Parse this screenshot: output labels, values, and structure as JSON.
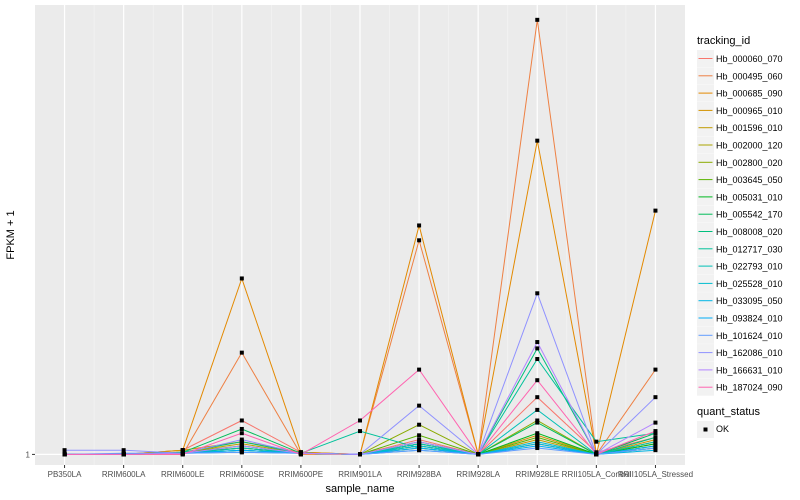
{
  "chart_data": {
    "type": "line",
    "xlabel": "sample_name",
    "ylabel": "FPKM + 1",
    "categories": [
      "PB350LA",
      "RRIM600LA",
      "RRIM600LE",
      "RRIM600SE",
      "RRIM600PE",
      "RRIM901LA",
      "RRIM928BA",
      "RRIM928LA",
      "RRIM928LE",
      "RRII105LA_Control",
      "RRII105LA_Stressed"
    ],
    "y_ticks": [
      {
        "value": 1,
        "label": "1"
      }
    ],
    "ylim": [
      0.5,
      22.2
    ],
    "grid": true,
    "legend": {
      "title": "tracking_id",
      "position": "right",
      "marker_title": "quant_status",
      "marker_label": "OK"
    },
    "series": [
      {
        "name": "Hb_000060_070",
        "color": "#F8766D",
        "values": [
          1,
          1,
          1.2,
          2.6,
          1.1,
          1,
          1.7,
          1,
          3.7,
          1.1,
          1.8
        ]
      },
      {
        "name": "Hb_000495_060",
        "color": "#EE8043",
        "values": [
          1,
          1,
          1,
          5.8,
          1,
          1,
          11.1,
          1,
          21.5,
          1,
          5.0
        ]
      },
      {
        "name": "Hb_000685_090",
        "color": "#E38900",
        "values": [
          1,
          1,
          1.2,
          9.3,
          1.1,
          1,
          11.8,
          1,
          15.8,
          1,
          12.5
        ]
      },
      {
        "name": "Hb_000965_010",
        "color": "#D39200",
        "values": [
          1,
          1,
          1.2,
          1.6,
          1.1,
          1,
          1.5,
          1,
          1.9,
          1,
          1.7
        ]
      },
      {
        "name": "Hb_001596_010",
        "color": "#C09B00",
        "values": [
          1,
          1,
          1.1,
          1.5,
          1.05,
          1,
          1.4,
          1,
          1.7,
          1,
          1.5
        ]
      },
      {
        "name": "Hb_002000_120",
        "color": "#A9A400",
        "values": [
          1,
          1,
          1.1,
          1.3,
          1.05,
          1,
          1.3,
          1,
          1.5,
          1,
          1.3
        ]
      },
      {
        "name": "Hb_002800_020",
        "color": "#8AAB00",
        "values": [
          1,
          1,
          1.1,
          1.4,
          1.05,
          1,
          2.4,
          1,
          2.6,
          1,
          1.6
        ]
      },
      {
        "name": "Hb_003645_050",
        "color": "#5BB300",
        "values": [
          1,
          1,
          1.05,
          1.2,
          1.05,
          1,
          1.9,
          1,
          1.8,
          1,
          1.4
        ]
      },
      {
        "name": "Hb_005031_010",
        "color": "#00B81F",
        "values": [
          1,
          1,
          1.05,
          1.3,
          1.05,
          1,
          1.6,
          1,
          2.0,
          1,
          1.5
        ]
      },
      {
        "name": "Hb_005542_170",
        "color": "#00BC59",
        "values": [
          1,
          1,
          1.1,
          2.2,
          1.05,
          1,
          1.5,
          1,
          2.5,
          1,
          2.0
        ]
      },
      {
        "name": "Hb_008008_020",
        "color": "#00BF7D",
        "values": [
          1,
          1,
          1.1,
          1.6,
          1.05,
          1,
          1.4,
          1,
          6.0,
          1,
          1.8
        ]
      },
      {
        "name": "Hb_012717_030",
        "color": "#00C19A",
        "values": [
          1,
          1,
          1.05,
          1.4,
          1.05,
          2.1,
          1.3,
          1,
          5.5,
          1.6,
          2.0
        ]
      },
      {
        "name": "Hb_022793_010",
        "color": "#00C0B6",
        "values": [
          1,
          1,
          1.05,
          1.3,
          1.05,
          1,
          1.5,
          1,
          3.1,
          1,
          1.6
        ]
      },
      {
        "name": "Hb_025528_010",
        "color": "#00BCCF",
        "values": [
          1,
          1,
          1.05,
          1.2,
          1.05,
          1,
          1.4,
          1,
          1.6,
          1,
          1.3
        ]
      },
      {
        "name": "Hb_033095_050",
        "color": "#00B5E5",
        "values": [
          1,
          1,
          1.05,
          1.1,
          1.05,
          1,
          1.2,
          1,
          1.5,
          1,
          1.2
        ]
      },
      {
        "name": "Hb_093824_010",
        "color": "#00ACF7",
        "values": [
          1,
          1,
          1.05,
          1.2,
          1.05,
          1,
          1.3,
          1,
          1.4,
          1,
          1.4
        ]
      },
      {
        "name": "Hb_101624_010",
        "color": "#619CFF",
        "values": [
          1,
          1.05,
          1.05,
          1.1,
          1.05,
          1,
          1.2,
          1,
          1.3,
          1,
          1.3
        ]
      },
      {
        "name": "Hb_162086_010",
        "color": "#8F91FF",
        "values": [
          1.2,
          1.2,
          1.05,
          1.7,
          1.05,
          1,
          3.3,
          1,
          8.6,
          1,
          3.7
        ]
      },
      {
        "name": "Hb_166631_010",
        "color": "#B385FF",
        "values": [
          1,
          1,
          1.05,
          1.4,
          1.05,
          1,
          1.6,
          1,
          6.3,
          1,
          2.5
        ]
      },
      {
        "name": "Hb_187024_090",
        "color": "#FF64B0",
        "values": [
          1,
          1,
          1,
          2.0,
          1,
          2.6,
          5.0,
          1,
          4.5,
          1,
          2.1
        ]
      }
    ]
  }
}
